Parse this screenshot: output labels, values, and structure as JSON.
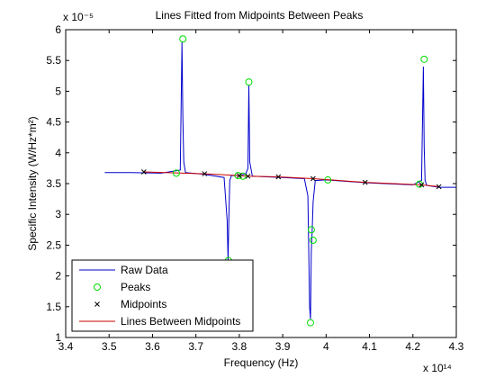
{
  "chart_data": {
    "type": "line",
    "title": "Lines Fitted from Midpoints Between Peaks",
    "xlabel": "Frequency (Hz)",
    "ylabel": "Specific Intensity (W/Hz*m²)",
    "x_exponent_label": "x 10¹⁴",
    "y_exponent_label": "x 10⁻⁵",
    "xlim": [
      3.4,
      4.3
    ],
    "ylim": [
      1.0,
      6.0
    ],
    "x_ticks": [
      "3.4",
      "3.5",
      "3.6",
      "3.7",
      "3.8",
      "3.9",
      "4",
      "4.1",
      "4.2",
      "4.3"
    ],
    "y_ticks": [
      "1",
      "1.5",
      "2",
      "2.5",
      "3",
      "3.5",
      "4",
      "4.5",
      "5",
      "5.5",
      "6"
    ],
    "legend_position": "bottom-left",
    "series": [
      {
        "name": "Raw Data",
        "color": "#0000cc",
        "style": "line",
        "x": [
          3.49,
          3.55,
          3.62,
          3.664,
          3.668,
          3.67,
          3.672,
          3.676,
          3.72,
          3.765,
          3.772,
          3.774,
          3.776,
          3.778,
          3.782,
          3.8,
          3.815,
          3.82,
          3.822,
          3.824,
          3.83,
          3.9,
          3.95,
          3.958,
          3.962,
          3.964,
          3.966,
          3.968,
          3.97,
          3.975,
          4.0,
          4.1,
          4.2,
          4.22,
          4.224,
          4.226,
          4.228,
          4.232,
          4.26,
          4.3
        ],
        "y": [
          3.68,
          3.68,
          3.67,
          3.72,
          5.8,
          4.55,
          3.85,
          3.68,
          3.65,
          3.6,
          2.9,
          2.25,
          2.95,
          3.55,
          3.63,
          3.63,
          3.66,
          3.75,
          5.1,
          3.85,
          3.62,
          3.6,
          3.58,
          3.3,
          1.5,
          1.3,
          2.4,
          2.75,
          3.2,
          3.55,
          3.56,
          3.51,
          3.48,
          3.55,
          5.4,
          4.1,
          3.55,
          3.47,
          3.44,
          3.44
        ]
      },
      {
        "name": "Peaks",
        "color": "#00dd00",
        "style": "circle",
        "x": [
          3.655,
          3.67,
          3.775,
          3.797,
          3.808,
          3.822,
          3.964,
          3.966,
          3.97,
          4.004,
          4.215,
          4.226
        ],
        "y": [
          3.67,
          5.85,
          2.25,
          3.63,
          3.62,
          5.15,
          1.24,
          2.75,
          2.58,
          3.56,
          3.49,
          5.52
        ]
      },
      {
        "name": "Midpoints",
        "color": "#000000",
        "style": "x",
        "x": [
          3.58,
          3.72,
          3.8,
          3.82,
          3.89,
          3.97,
          4.09,
          4.22,
          4.26
        ],
        "y": [
          3.69,
          3.66,
          3.63,
          3.62,
          3.61,
          3.58,
          3.52,
          3.48,
          3.45
        ]
      },
      {
        "name": "Lines Between Midpoints",
        "color": "#cc0000",
        "style": "line",
        "x": [
          3.58,
          3.72,
          3.8,
          3.82,
          3.89,
          3.97,
          4.09,
          4.22,
          4.26
        ],
        "y": [
          3.69,
          3.66,
          3.63,
          3.62,
          3.61,
          3.58,
          3.52,
          3.48,
          3.45
        ]
      }
    ]
  }
}
